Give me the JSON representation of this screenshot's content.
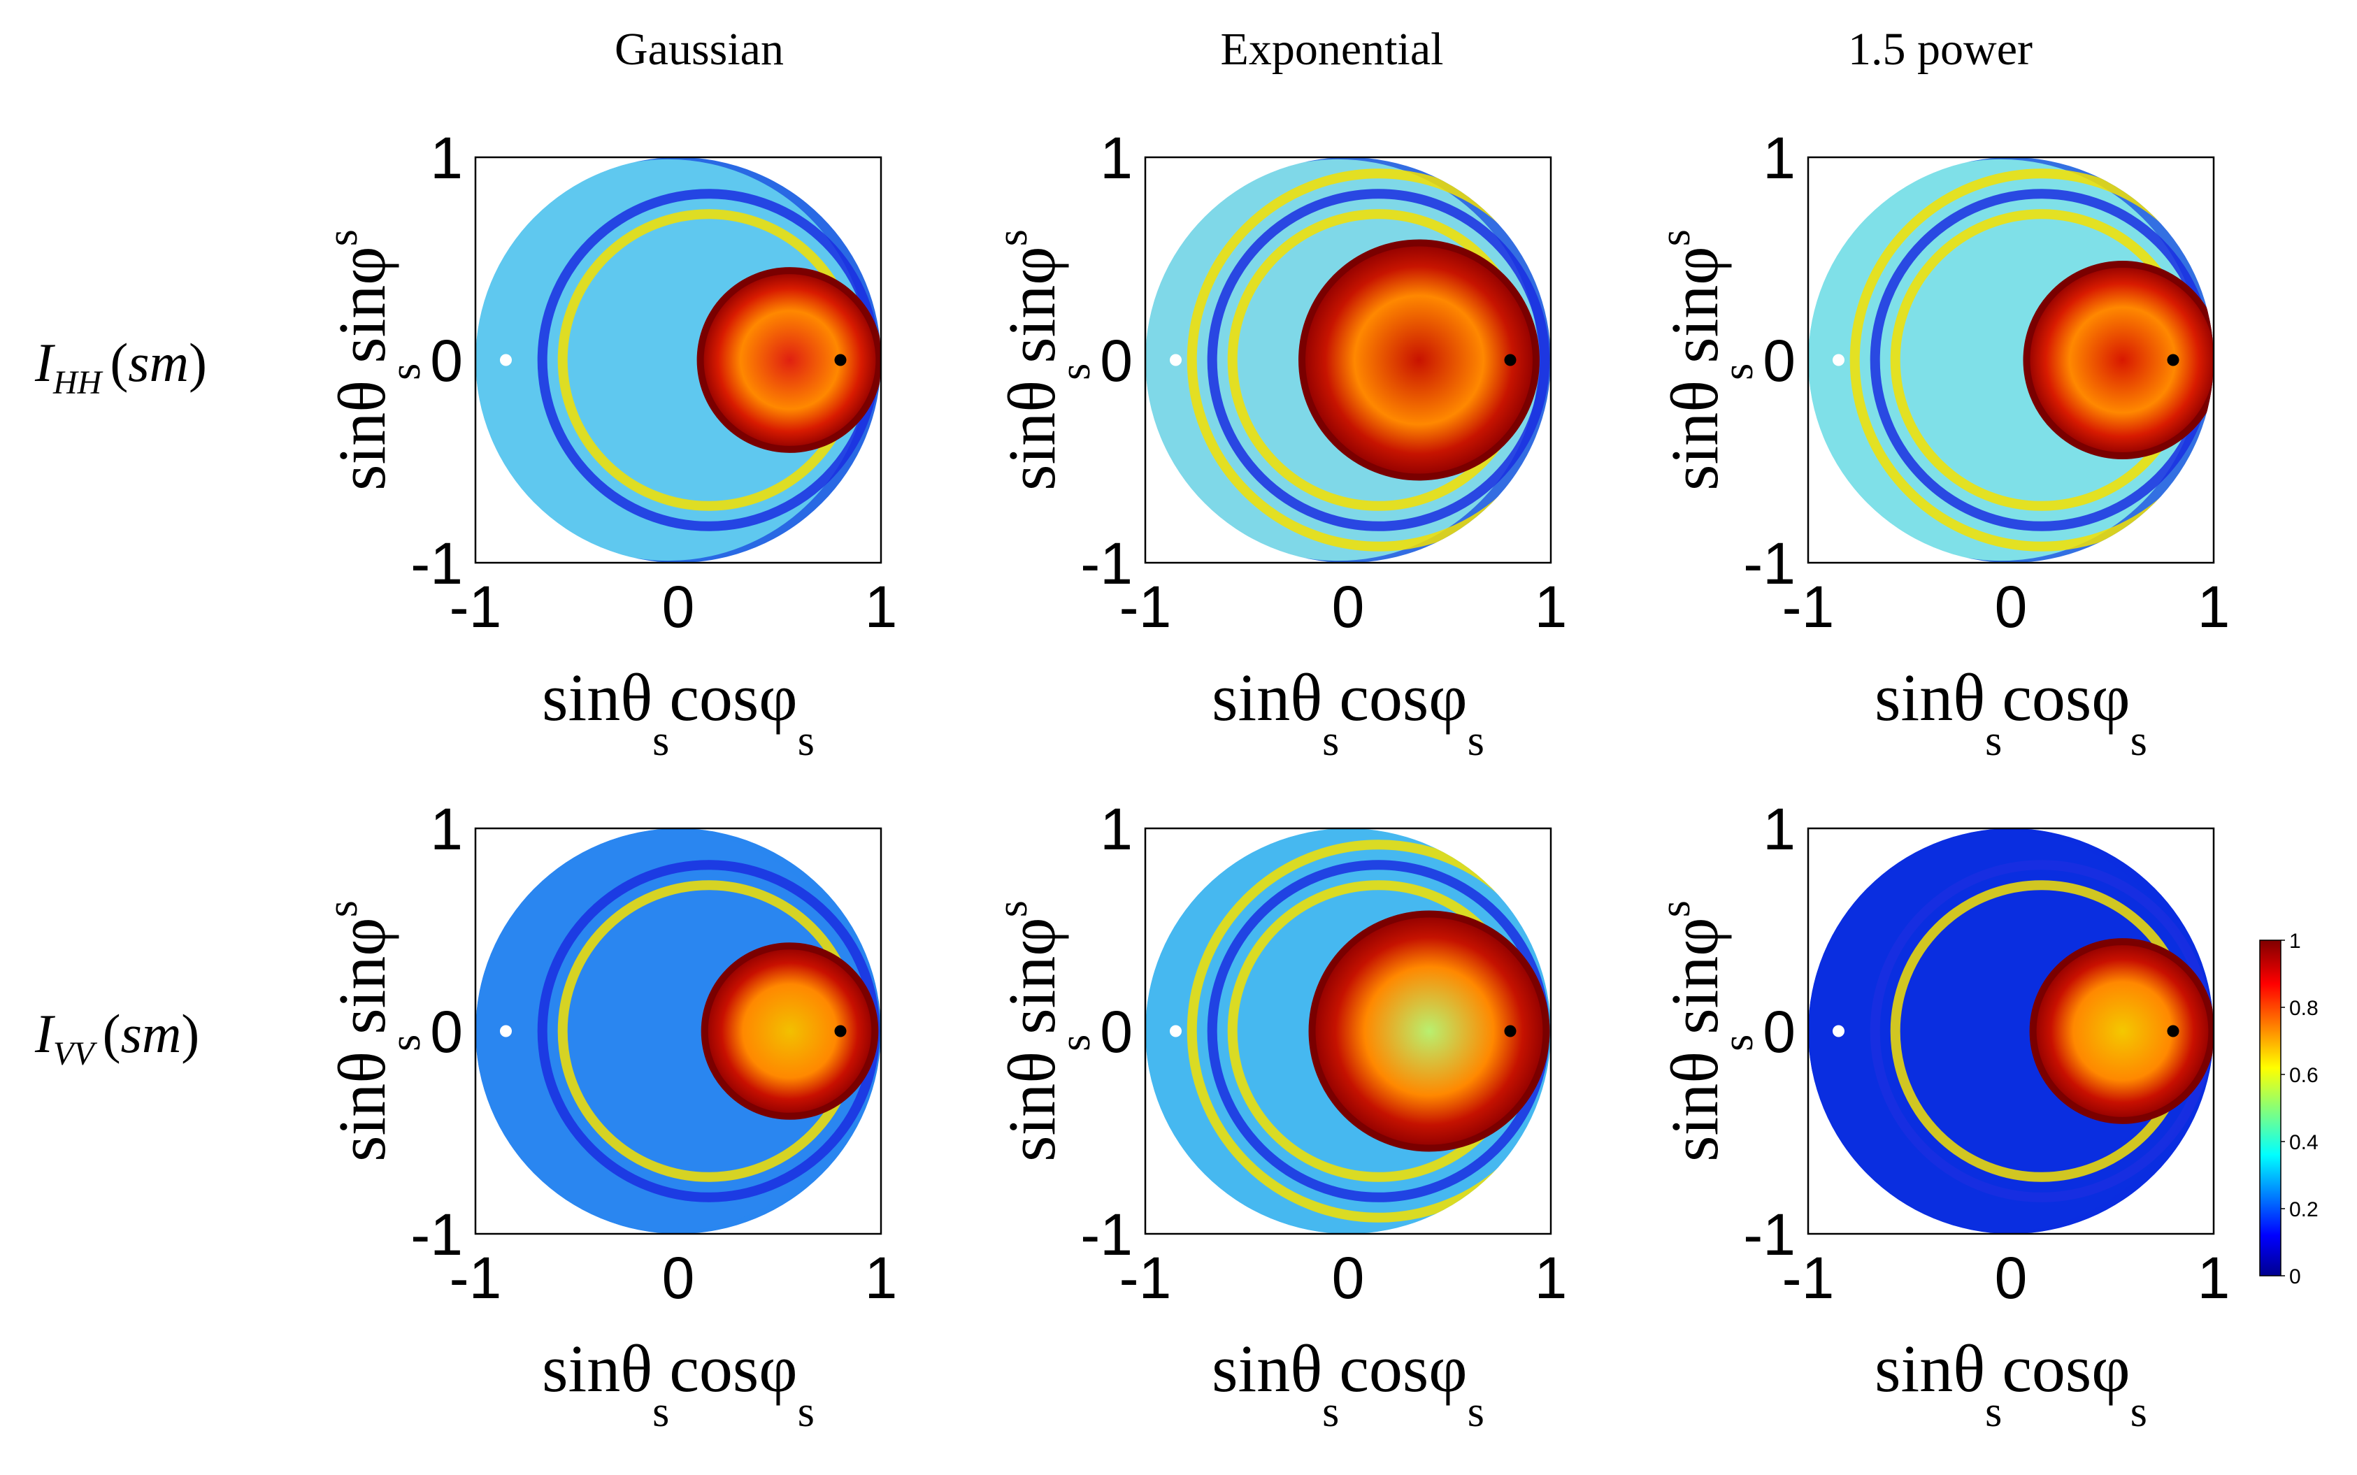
{
  "chart_data": {
    "type": "heatmap",
    "description_free": true,
    "columns": [
      "Gaussian",
      "Exponential",
      "1.5 power"
    ],
    "rows": [
      {
        "label_main": "I",
        "label_sub": "HH",
        "label_arg": "sm"
      },
      {
        "label_main": "I",
        "label_sub": "VV",
        "label_arg": "sm"
      }
    ],
    "xlabel": {
      "main": "sinθ",
      "sub": "s",
      "main2": "cosφ",
      "sub2": "s"
    },
    "ylabel": {
      "main": "sinθ",
      "sub": "s",
      "main2": "sinφ",
      "sub2": "s"
    },
    "xlim": [
      -1,
      1
    ],
    "ylim": [
      -1,
      1
    ],
    "xticks": [
      "-1",
      "0",
      "1"
    ],
    "yticks": [
      "1",
      "0",
      "-1"
    ],
    "markers": [
      {
        "name": "incident-specular-point",
        "x": -0.85,
        "y": 0,
        "color": "#ffffff"
      },
      {
        "name": "specular-point",
        "x": 0.8,
        "y": 0,
        "color": "#000000"
      }
    ],
    "colorbar": {
      "min": 0,
      "max": 1,
      "ticks": [
        "1",
        "0.8",
        "0.6",
        "0.4",
        "0.2",
        "0"
      ],
      "colormap": "jet"
    },
    "panels": [
      {
        "row": 0,
        "col": 0,
        "background": "#5fc8ef",
        "center_color": "#e02010",
        "lobes": [
          {
            "x": 0.55,
            "y": 0,
            "r": 0.42,
            "color": "#d81b00"
          }
        ],
        "arcs": 2
      },
      {
        "row": 0,
        "col": 1,
        "background": "#7fd8e8",
        "center_color": "#c81200",
        "lobes": [
          {
            "x": 0.35,
            "y": 0,
            "r": 0.55,
            "color": "#c71400"
          }
        ],
        "arcs": 3
      },
      {
        "row": 0,
        "col": 2,
        "background": "#7fe0e8",
        "center_color": "#d81800",
        "lobes": [
          {
            "x": 0.55,
            "y": 0,
            "r": 0.45,
            "color": "#d81b00"
          }
        ],
        "arcs": 3
      },
      {
        "row": 1,
        "col": 0,
        "background": "#2a86f0",
        "center_color": "#f2c000",
        "lobes": [
          {
            "x": 0.55,
            "y": 0,
            "r": 0.4,
            "color": "#c81000"
          }
        ],
        "arcs": 2
      },
      {
        "row": 1,
        "col": 1,
        "background": "#46b8f0",
        "center_color": "#b8f070",
        "lobes": [
          {
            "x": 0.4,
            "y": 0,
            "r": 0.55,
            "color": "#c51200"
          }
        ],
        "arcs": 3
      },
      {
        "row": 1,
        "col": 2,
        "background": "#0a2ee0",
        "center_color": "#f4c800",
        "lobes": [
          {
            "x": 0.55,
            "y": 0,
            "r": 0.42,
            "color": "#c81000"
          }
        ],
        "arcs": 2
      }
    ]
  }
}
